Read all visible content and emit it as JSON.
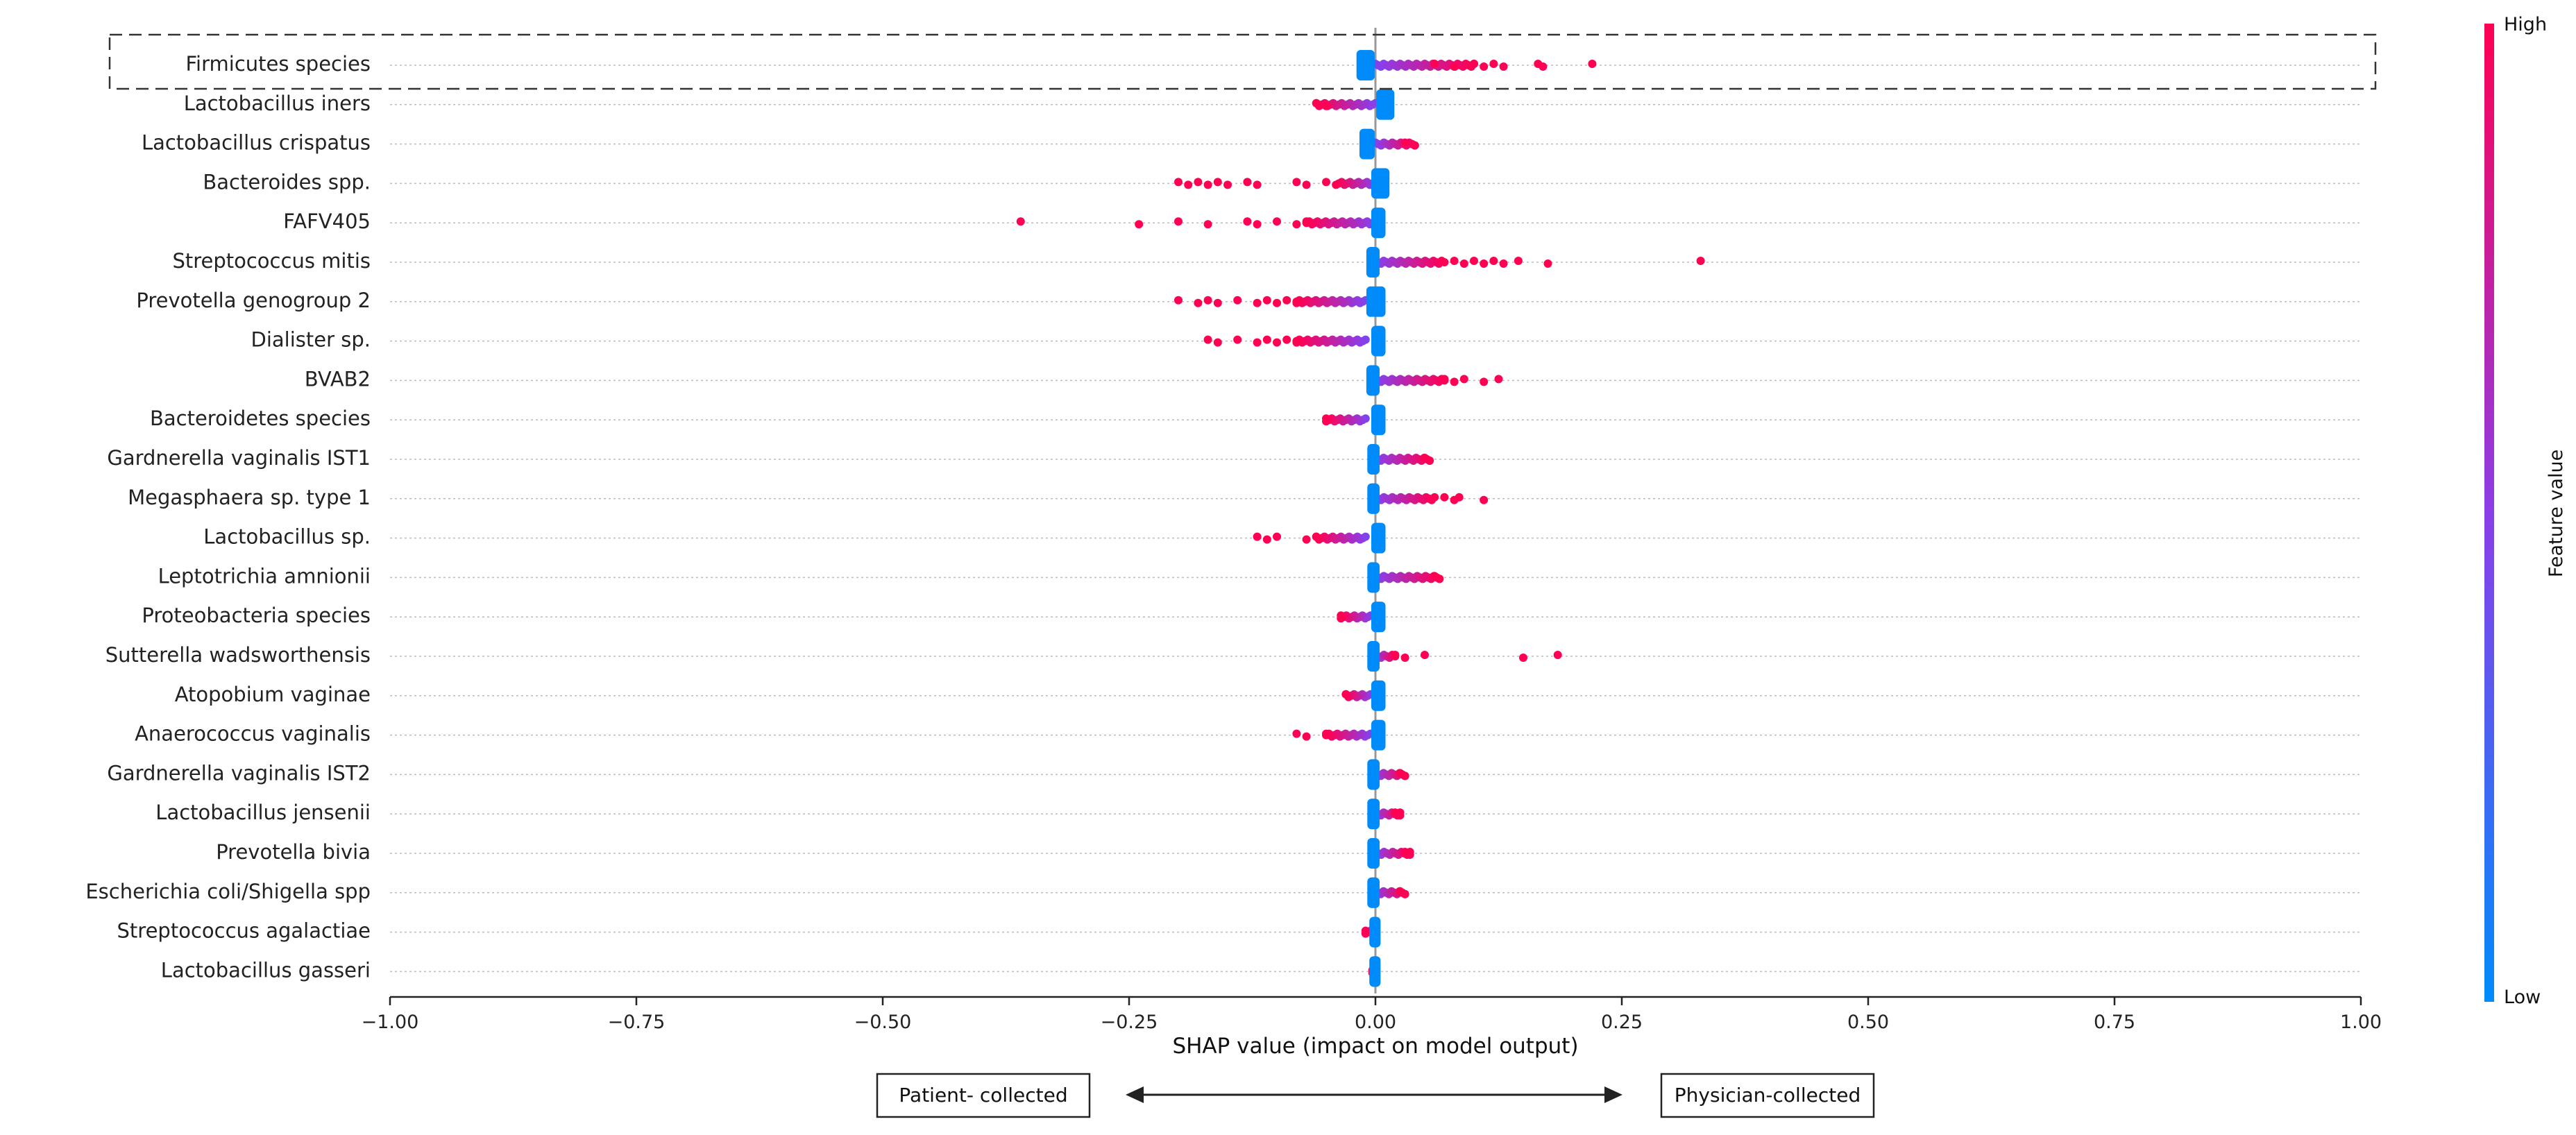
{
  "chart_data": {
    "type": "scatter",
    "subtype": "shap-beeswarm-summary",
    "xlabel": "SHAP value (impact on model output)",
    "xlim": [
      -1.0,
      1.0
    ],
    "xticks": [
      -1.0,
      -0.75,
      -0.5,
      -0.25,
      0.0,
      0.25,
      0.5,
      0.75,
      1.0
    ],
    "xtick_labels": [
      "−1.00",
      "−0.75",
      "−0.50",
      "−0.25",
      "0.00",
      "0.25",
      "0.50",
      "0.75",
      "1.00"
    ],
    "colorbar": {
      "title": "Feature value",
      "high_label": "High",
      "low_label": "Low",
      "high_color": "#ff0052",
      "low_color": "#008bfb"
    },
    "highlighted_feature": "Firmicutes species",
    "annotations": {
      "left_box": "Patient- collected",
      "right_box": "Physician-collected"
    },
    "features": [
      {
        "name": "Firmicutes species",
        "low_range": [
          -0.015,
          -0.005
        ],
        "high_points": [
          0.06,
          0.08,
          0.1,
          0.11,
          0.12,
          0.13,
          0.165,
          0.17,
          0.22
        ],
        "high_range": [
          0.0,
          0.1
        ]
      },
      {
        "name": "Lactobacillus iners",
        "low_range": [
          0.005,
          0.015
        ],
        "high_points": [
          -0.06,
          -0.05
        ],
        "high_range": [
          -0.06,
          0.0
        ]
      },
      {
        "name": "Lactobacillus crispatus",
        "low_range": [
          -0.012,
          -0.005
        ],
        "high_points": [
          0.03,
          0.04
        ],
        "high_range": [
          0.0,
          0.04
        ]
      },
      {
        "name": "Bacteroides spp.",
        "low_range": [
          0.0,
          0.01
        ],
        "high_points": [
          -0.2,
          -0.19,
          -0.18,
          -0.17,
          -0.16,
          -0.15,
          -0.13,
          -0.12,
          -0.08,
          -0.07,
          -0.05
        ],
        "high_range": [
          -0.04,
          0.0
        ]
      },
      {
        "name": "FAFV405",
        "low_range": [
          0.0,
          0.006
        ],
        "high_points": [
          -0.36,
          -0.24,
          -0.2,
          -0.17,
          -0.13,
          -0.12,
          -0.1,
          -0.08,
          -0.07
        ],
        "high_range": [
          -0.07,
          0.0
        ]
      },
      {
        "name": "Streptococcus mitis",
        "low_range": [
          -0.005,
          0.0
        ],
        "high_points": [
          0.08,
          0.09,
          0.1,
          0.11,
          0.12,
          0.13,
          0.145,
          0.175,
          0.33
        ],
        "high_range": [
          0.0,
          0.07
        ]
      },
      {
        "name": "Prevotella genogroup 2",
        "low_range": [
          -0.005,
          0.006
        ],
        "high_points": [
          -0.2,
          -0.18,
          -0.17,
          -0.16,
          -0.14,
          -0.12,
          -0.11,
          -0.1,
          -0.09,
          -0.08
        ],
        "high_range": [
          -0.08,
          -0.01
        ]
      },
      {
        "name": "Dialister sp.",
        "low_range": [
          0.0,
          0.006
        ],
        "high_points": [
          -0.17,
          -0.16,
          -0.14,
          -0.12,
          -0.11,
          -0.1,
          -0.09,
          -0.08
        ],
        "high_range": [
          -0.08,
          -0.01
        ]
      },
      {
        "name": "BVAB2",
        "low_range": [
          -0.005,
          0.0
        ],
        "high_points": [
          0.07,
          0.08,
          0.09,
          0.11,
          0.125
        ],
        "high_range": [
          0.0,
          0.07
        ]
      },
      {
        "name": "Bacteroidetes species",
        "low_range": [
          0.0,
          0.006
        ],
        "high_points": [
          -0.05
        ],
        "high_range": [
          -0.05,
          -0.01
        ]
      },
      {
        "name": "Gardnerella vaginalis IST1",
        "low_range": [
          -0.004,
          0.0
        ],
        "high_points": [
          0.05,
          0.055
        ],
        "high_range": [
          0.0,
          0.055
        ]
      },
      {
        "name": "Megasphaera sp. type 1",
        "low_range": [
          -0.004,
          0.0
        ],
        "high_points": [
          0.07,
          0.08,
          0.085,
          0.11
        ],
        "high_range": [
          0.0,
          0.06
        ]
      },
      {
        "name": "Lactobacillus sp.",
        "low_range": [
          0.0,
          0.006
        ],
        "high_points": [
          -0.12,
          -0.11,
          -0.1,
          -0.07,
          -0.06
        ],
        "high_range": [
          -0.06,
          -0.01
        ]
      },
      {
        "name": "Leptotrichia amnionii",
        "low_range": [
          -0.004,
          0.0
        ],
        "high_points": [
          0.06,
          0.065
        ],
        "high_range": [
          0.0,
          0.065
        ]
      },
      {
        "name": "Proteobacteria species",
        "low_range": [
          0.0,
          0.006
        ],
        "high_points": [
          -0.035
        ],
        "high_range": [
          -0.035,
          -0.005
        ]
      },
      {
        "name": "Sutterella wadsworthensis",
        "low_range": [
          -0.004,
          0.0
        ],
        "high_points": [
          0.02,
          0.03,
          0.05,
          0.15,
          0.185
        ],
        "high_range": [
          0.0,
          0.02
        ]
      },
      {
        "name": "Atopobium vaginae",
        "low_range": [
          0.0,
          0.006
        ],
        "high_points": [
          -0.03
        ],
        "high_range": [
          -0.03,
          -0.005
        ]
      },
      {
        "name": "Anaerococcus vaginalis",
        "low_range": [
          0.0,
          0.006
        ],
        "high_points": [
          -0.08,
          -0.07,
          -0.05
        ],
        "high_range": [
          -0.05,
          -0.005
        ]
      },
      {
        "name": "Gardnerella vaginalis IST2",
        "low_range": [
          -0.004,
          0.0
        ],
        "high_points": [
          0.025,
          0.03
        ],
        "high_range": [
          0.0,
          0.03
        ]
      },
      {
        "name": "Lactobacillus jensenii",
        "low_range": [
          -0.004,
          0.0
        ],
        "high_points": [
          0.02,
          0.025
        ],
        "high_range": [
          0.0,
          0.025
        ]
      },
      {
        "name": "Prevotella bivia",
        "low_range": [
          -0.004,
          0.0
        ],
        "high_points": [
          0.03,
          0.035
        ],
        "high_range": [
          0.0,
          0.035
        ]
      },
      {
        "name": "Escherichia coli/Shigella spp",
        "low_range": [
          -0.004,
          0.0
        ],
        "high_points": [
          0.025,
          0.03
        ],
        "high_range": [
          0.0,
          0.03
        ]
      },
      {
        "name": "Streptococcus agalactiae",
        "low_range": [
          -0.002,
          0.001
        ],
        "high_points": [
          -0.01
        ],
        "high_range": [
          -0.01,
          -0.005
        ]
      },
      {
        "name": "Lactobacillus gasseri",
        "low_range": [
          -0.002,
          0.001
        ],
        "high_points": [
          -0.003
        ],
        "high_range": [
          -0.003,
          0.0
        ]
      }
    ]
  }
}
